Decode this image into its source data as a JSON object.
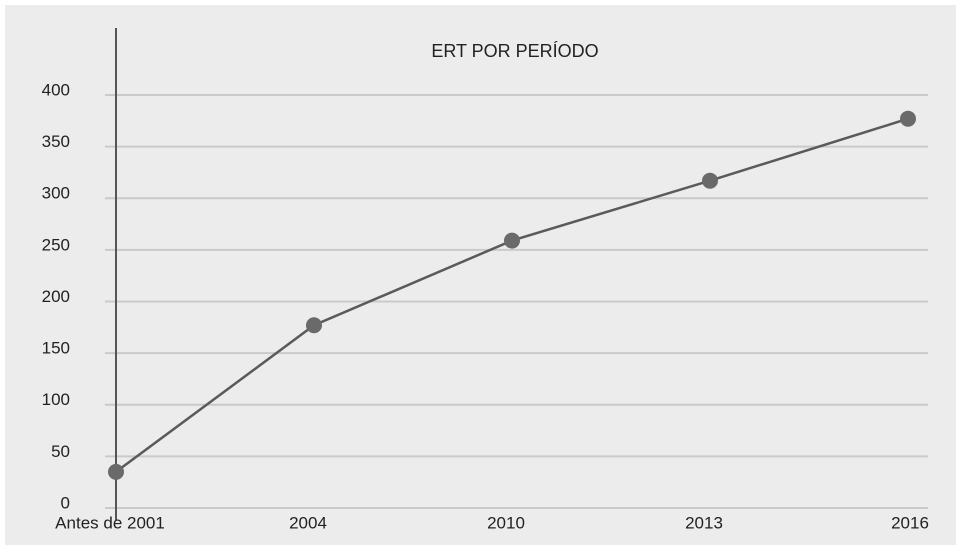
{
  "chart_data": {
    "type": "line",
    "title": "ERT POR PERÍODO",
    "categories": [
      "Antes de 2001",
      "2004",
      "2010",
      "2013",
      "2016"
    ],
    "series": [
      {
        "name": "ERT",
        "color": "#5a5a5a",
        "values": [
          35,
          177,
          259,
          317,
          377
        ]
      }
    ],
    "ylim": [
      0,
      400
    ],
    "yticks": [
      0,
      50,
      100,
      150,
      200,
      250,
      300,
      350,
      400
    ],
    "grid": true
  }
}
